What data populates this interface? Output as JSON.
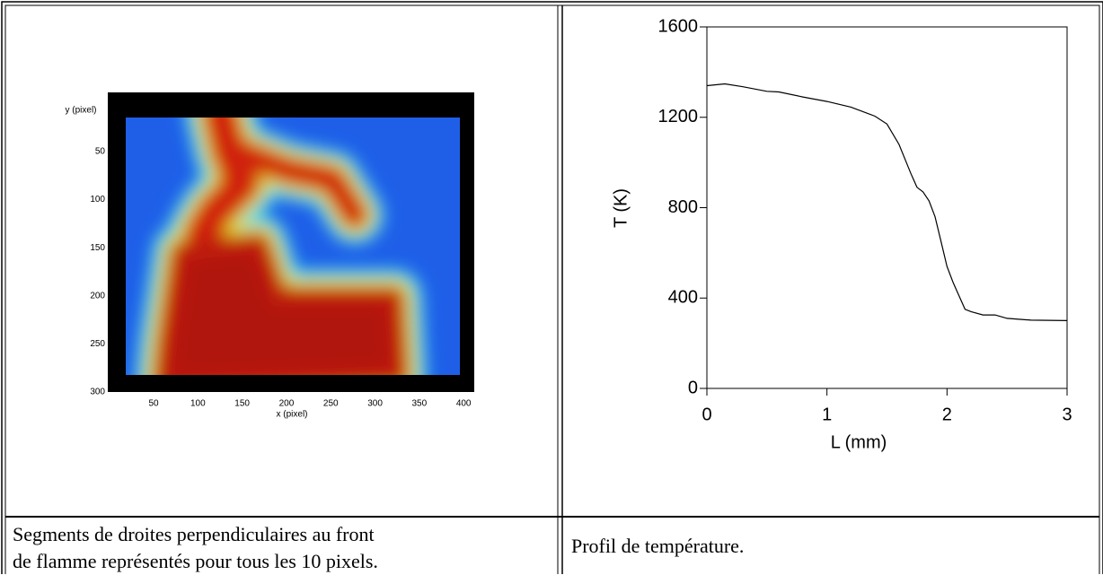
{
  "heatmap": {
    "y_label": "y (pixel)",
    "x_label": "x (pixel)",
    "xlim": [
      0,
      412
    ],
    "xticks": [
      50,
      100,
      150,
      200,
      250,
      300,
      350,
      400
    ],
    "ylim": [
      -11,
      300
    ],
    "yticks": [
      50,
      100,
      150,
      200,
      250,
      300
    ]
  },
  "chart_data": {
    "type": "line",
    "x_label": "L (mm)",
    "y_label": "T (K)",
    "xlim": [
      0,
      3
    ],
    "xticks": [
      0,
      1,
      2,
      3
    ],
    "ylim": [
      0,
      1600
    ],
    "yticks": [
      0,
      400,
      800,
      1200,
      1600
    ],
    "series": [
      {
        "color": "#000000",
        "x": [
          0,
          0.15,
          0.3,
          0.5,
          0.6,
          0.8,
          1.0,
          1.2,
          1.4,
          1.5,
          1.6,
          1.7,
          1.75,
          1.8,
          1.85,
          1.9,
          1.95,
          2.0,
          2.05,
          2.1,
          2.15,
          2.2,
          2.3,
          2.4,
          2.5,
          2.7,
          3.0
        ],
        "values": [
          1340,
          1348,
          1335,
          1315,
          1312,
          1290,
          1270,
          1245,
          1205,
          1170,
          1080,
          950,
          890,
          870,
          830,
          760,
          650,
          540,
          470,
          410,
          350,
          340,
          325,
          325,
          310,
          302,
          300
        ]
      }
    ]
  },
  "captions": {
    "left": [
      "Segments de droites perpendiculaires au front",
      "de flamme représentés pour tous les 10 pixels."
    ],
    "right": "Profil de température."
  }
}
